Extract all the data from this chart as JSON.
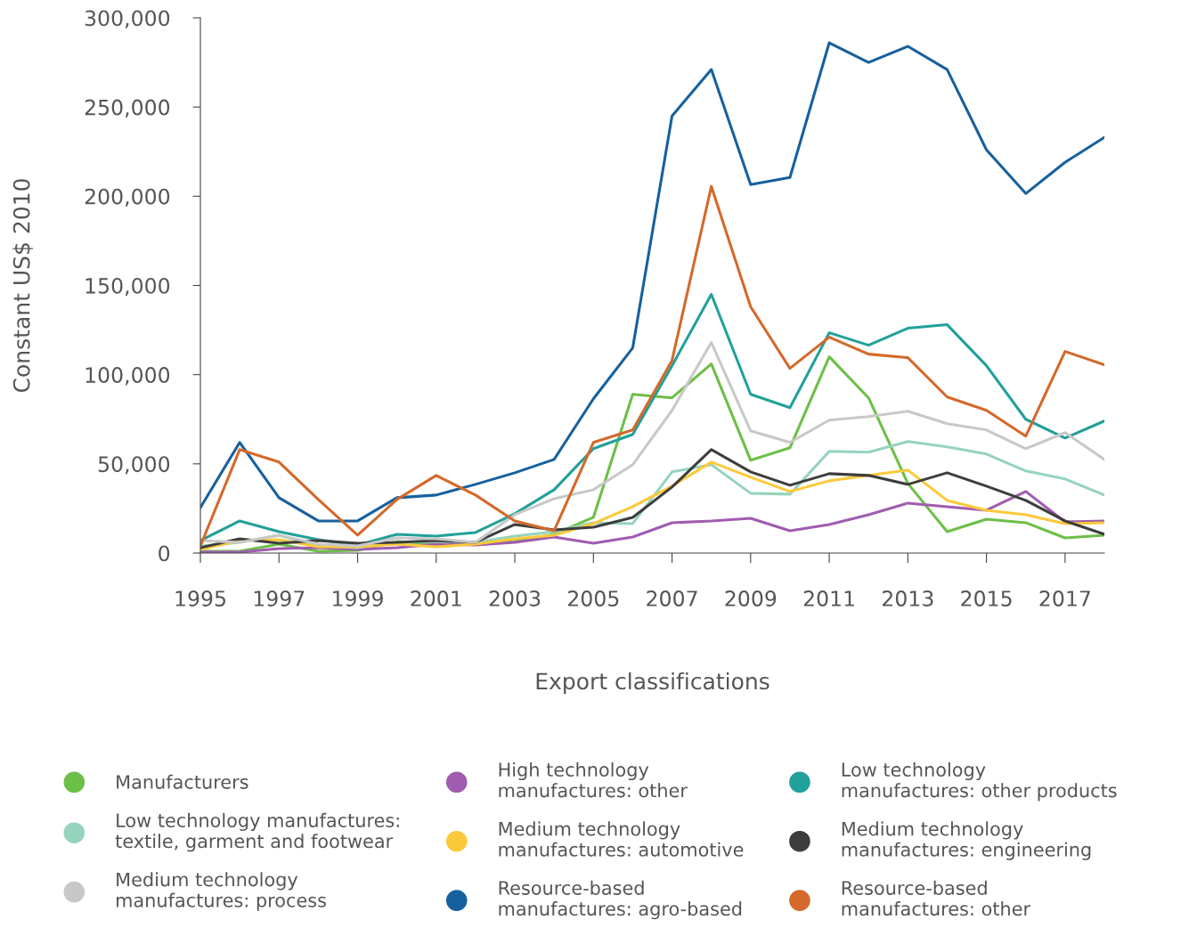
{
  "chart_data": {
    "type": "line",
    "xlabel": "Export classifications",
    "ylabel": "Constant US$ 2010",
    "x": [
      1995,
      1996,
      1997,
      1998,
      1999,
      2000,
      2001,
      2002,
      2003,
      2004,
      2005,
      2006,
      2007,
      2008,
      2009,
      2010,
      2011,
      2012,
      2013,
      2014,
      2015,
      2016,
      2017,
      2018
    ],
    "xlim": [
      1995,
      2018
    ],
    "xticks": [
      1995,
      1997,
      1999,
      2001,
      2003,
      2005,
      2007,
      2009,
      2011,
      2013,
      2015,
      2017
    ],
    "ylim": [
      0,
      300000
    ],
    "yticks": [
      {
        "value": 0,
        "label": "0"
      },
      {
        "value": 50000,
        "label": "50,000"
      },
      {
        "value": 100000,
        "label": "100,000"
      },
      {
        "value": 150000,
        "label": "150,000"
      },
      {
        "value": 200000,
        "label": "200,000"
      },
      {
        "value": 250000,
        "label": "250,000"
      },
      {
        "value": 300000,
        "label": "300,000"
      }
    ],
    "grid": false,
    "legend": "bottom",
    "marker": "none",
    "line_style": "solid",
    "series": [
      {
        "name": "Manufacturers",
        "color": "#6cbf47",
        "values": [
          1000,
          1000,
          5000,
          1000,
          1500,
          6500,
          5000,
          5500,
          6500,
          10500,
          20000,
          89000,
          87000,
          106000,
          52000,
          59000,
          110000,
          87000,
          39000,
          12000,
          19000,
          17000,
          8500,
          10000
        ]
      },
      {
        "name": "High technology\nmanufactures: other",
        "color": "#a05cb0",
        "values": [
          500,
          500,
          2500,
          3000,
          2000,
          3000,
          5000,
          4500,
          6000,
          9000,
          5500,
          9000,
          17000,
          18000,
          19500,
          12500,
          16000,
          21500,
          28000,
          26000,
          24000,
          34500,
          17500,
          18000
        ]
      },
      {
        "name": "Low technology\nmanufactures: other products",
        "color": "#22a09a",
        "values": [
          7000,
          18000,
          12000,
          7500,
          4500,
          10500,
          9500,
          11500,
          22000,
          35500,
          58500,
          66500,
          105000,
          145000,
          89000,
          81500,
          123500,
          116500,
          126000,
          128000,
          105000,
          75000,
          64500,
          74000
        ]
      },
      {
        "name": "Low technology manufactures:\ntextile, garment and footwear",
        "color": "#95d4bc",
        "values": [
          4000,
          6000,
          10000,
          4000,
          3000,
          6000,
          6500,
          6000,
          9500,
          12000,
          17000,
          16500,
          45500,
          49500,
          33500,
          33000,
          57000,
          56500,
          62500,
          59500,
          55500,
          46000,
          41500,
          32500
        ]
      },
      {
        "name": "Medium technology\nmanufactures: automotive",
        "color": "#fcc93a",
        "values": [
          2000,
          7000,
          7500,
          3500,
          3500,
          5000,
          3500,
          5000,
          8000,
          10000,
          16500,
          26000,
          37500,
          51000,
          42500,
          34500,
          40500,
          43500,
          46500,
          29500,
          24000,
          21500,
          16500,
          17000
        ]
      },
      {
        "name": "Medium technology\nmanufactures: engineering",
        "color": "#3d3d3d",
        "values": [
          3000,
          8000,
          5500,
          7000,
          5500,
          6000,
          7000,
          6000,
          16000,
          13000,
          14500,
          20000,
          37000,
          58000,
          45500,
          38000,
          44500,
          43500,
          38500,
          45000,
          37500,
          29500,
          18000,
          10500
        ]
      },
      {
        "name": "Medium technology\nmanufactures: process",
        "color": "#c8c8c8",
        "values": [
          7000,
          6000,
          10000,
          5000,
          4000,
          8500,
          8000,
          6000,
          21500,
          30500,
          35500,
          49500,
          80000,
          118000,
          68500,
          62000,
          74500,
          76500,
          79500,
          72500,
          69000,
          58500,
          67500,
          52500
        ]
      },
      {
        "name": "Resource-based\nmanufactures: agro-based",
        "color": "#17609e",
        "values": [
          25500,
          62000,
          31000,
          18000,
          18000,
          31000,
          32500,
          38500,
          45000,
          52500,
          86500,
          115000,
          245000,
          271000,
          206500,
          210500,
          286000,
          275000,
          284000,
          271000,
          226000,
          201500,
          219000,
          233000
        ]
      },
      {
        "name": "Resource-based\nmanufactures: other",
        "color": "#d4692a",
        "values": [
          4000,
          58000,
          51000,
          30000,
          10000,
          30000,
          43500,
          32500,
          18000,
          12500,
          62000,
          69000,
          108000,
          205500,
          138000,
          103500,
          121000,
          111500,
          109500,
          87500,
          80000,
          65500,
          113000,
          105500
        ]
      }
    ]
  }
}
